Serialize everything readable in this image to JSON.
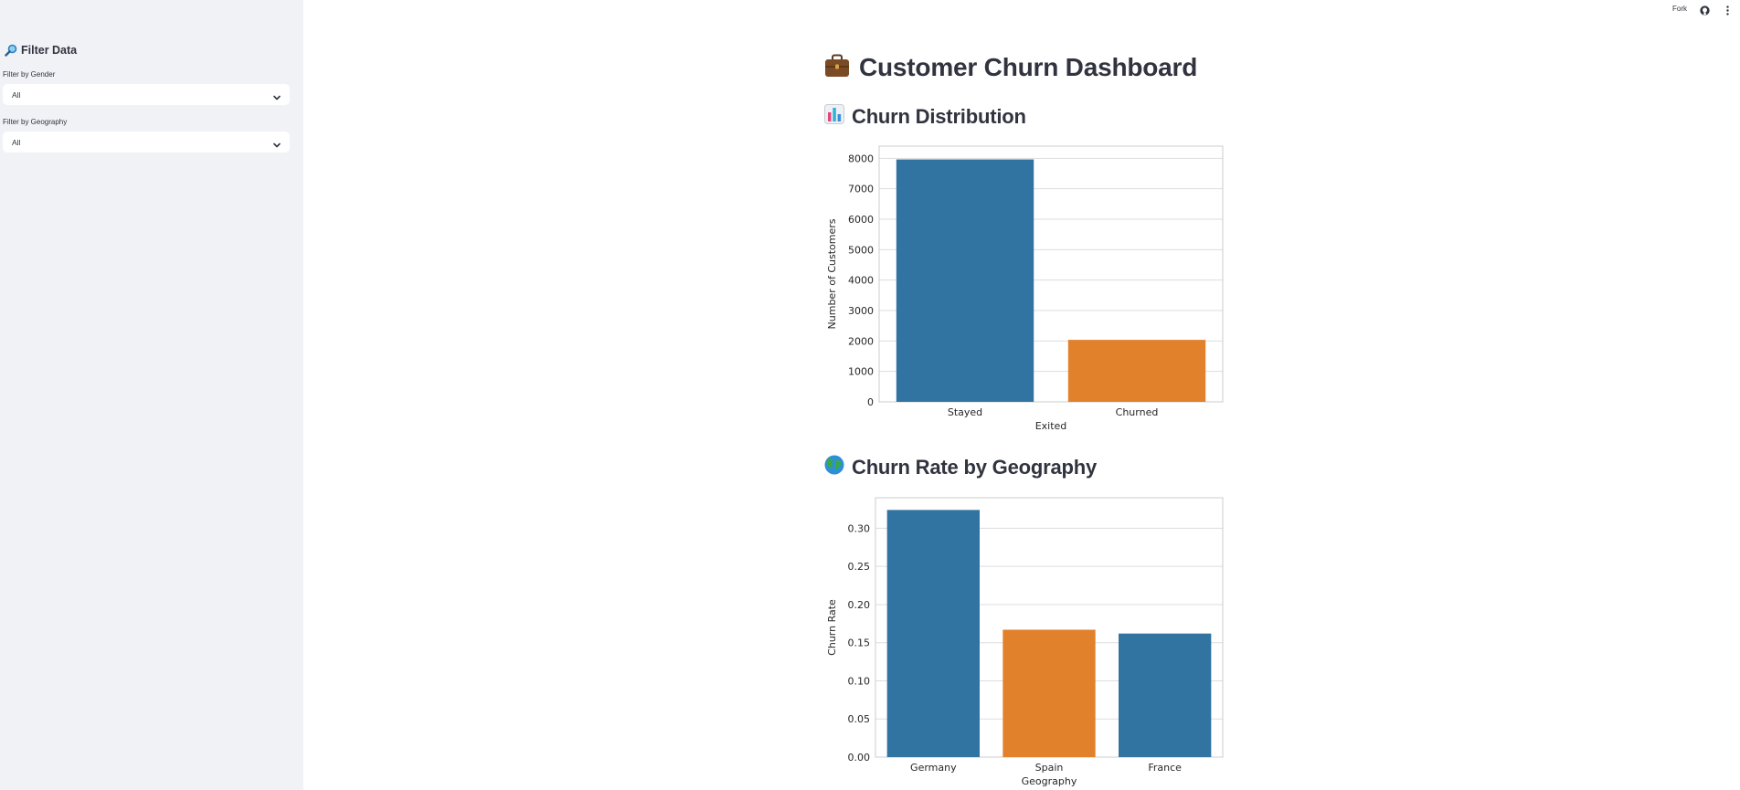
{
  "toolbar": {
    "fork_label": "Fork"
  },
  "sidebar": {
    "title": "Filter Data",
    "gender": {
      "label": "Filter by Gender",
      "value": "All"
    },
    "geography": {
      "label": "Filter by Geography",
      "value": "All"
    }
  },
  "main": {
    "title": "Customer Churn Dashboard",
    "section1": "Churn Distribution",
    "section2": "Churn Rate by Geography"
  },
  "colors": {
    "blue": "#3274a1",
    "orange": "#e1812c",
    "sidebar_bg": "#f0f2f6"
  },
  "chart_data": [
    {
      "type": "bar",
      "title": "",
      "xlabel": "Exited",
      "ylabel": "Number of Customers",
      "categories": [
        "Stayed",
        "Churned"
      ],
      "values": [
        7963,
        2037
      ],
      "ylim": [
        0,
        8400
      ],
      "yticks": [
        0,
        1000,
        2000,
        3000,
        4000,
        5000,
        6000,
        7000,
        8000
      ],
      "ytick_labels": [
        "0",
        "1000",
        "2000",
        "3000",
        "4000",
        "5000",
        "6000",
        "7000",
        "8000"
      ],
      "bar_colors": [
        "#3274a1",
        "#e1812c"
      ],
      "grid": true
    },
    {
      "type": "bar",
      "title": "",
      "xlabel": "Geography",
      "ylabel": "Churn Rate",
      "categories": [
        "Germany",
        "Spain",
        "France"
      ],
      "values": [
        0.324,
        0.167,
        0.162
      ],
      "ylim": [
        0,
        0.34
      ],
      "yticks": [
        0,
        0.05,
        0.1,
        0.15,
        0.2,
        0.25,
        0.3
      ],
      "ytick_labels": [
        "0.00",
        "0.05",
        "0.10",
        "0.15",
        "0.20",
        "0.25",
        "0.30"
      ],
      "bar_colors": [
        "#3274a1",
        "#e1812c",
        "#3274a1"
      ],
      "grid": true
    }
  ]
}
